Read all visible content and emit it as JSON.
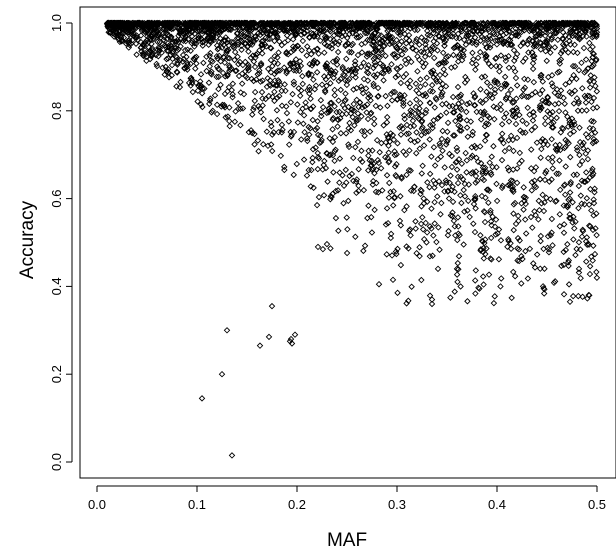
{
  "chart_data": {
    "type": "scatter",
    "title": "",
    "xlabel": "MAF",
    "ylabel": "Accuracy",
    "xlim": [
      0.0,
      0.5
    ],
    "ylim": [
      0.0,
      1.0
    ],
    "x_ticks": [
      "0.0",
      "0.1",
      "0.2",
      "0.3",
      "0.4",
      "0.5"
    ],
    "y_ticks": [
      "0.0",
      "0.2",
      "0.4",
      "0.6",
      "0.8",
      "1.0"
    ],
    "marker": "open-diamond",
    "grid": false,
    "legend": "none",
    "dense_cloud": {
      "description_points": "several thousand SNPs; accuracy concentrated near 1.0 with lower bound rising from ~0.98 at MAF 0.01 to ~0.6 at MAF 0.22, and scattered values down to ~0.36 for MAF 0.3-0.5",
      "x_range": [
        0.01,
        0.5
      ],
      "upper_y": 1.0
    },
    "outliers": [
      {
        "x": 0.105,
        "y": 0.145
      },
      {
        "x": 0.125,
        "y": 0.2
      },
      {
        "x": 0.13,
        "y": 0.3
      },
      {
        "x": 0.135,
        "y": 0.015
      },
      {
        "x": 0.163,
        "y": 0.265
      },
      {
        "x": 0.172,
        "y": 0.285
      },
      {
        "x": 0.175,
        "y": 0.355
      },
      {
        "x": 0.193,
        "y": 0.275
      },
      {
        "x": 0.194,
        "y": 0.28
      },
      {
        "x": 0.195,
        "y": 0.27
      },
      {
        "x": 0.198,
        "y": 0.29
      },
      {
        "x": 0.282,
        "y": 0.405
      },
      {
        "x": 0.296,
        "y": 0.415
      },
      {
        "x": 0.335,
        "y": 0.36
      },
      {
        "x": 0.335,
        "y": 0.37
      },
      {
        "x": 0.341,
        "y": 0.44
      },
      {
        "x": 0.36,
        "y": 0.44
      },
      {
        "x": 0.473,
        "y": 0.365
      },
      {
        "x": 0.482,
        "y": 0.44
      }
    ]
  }
}
